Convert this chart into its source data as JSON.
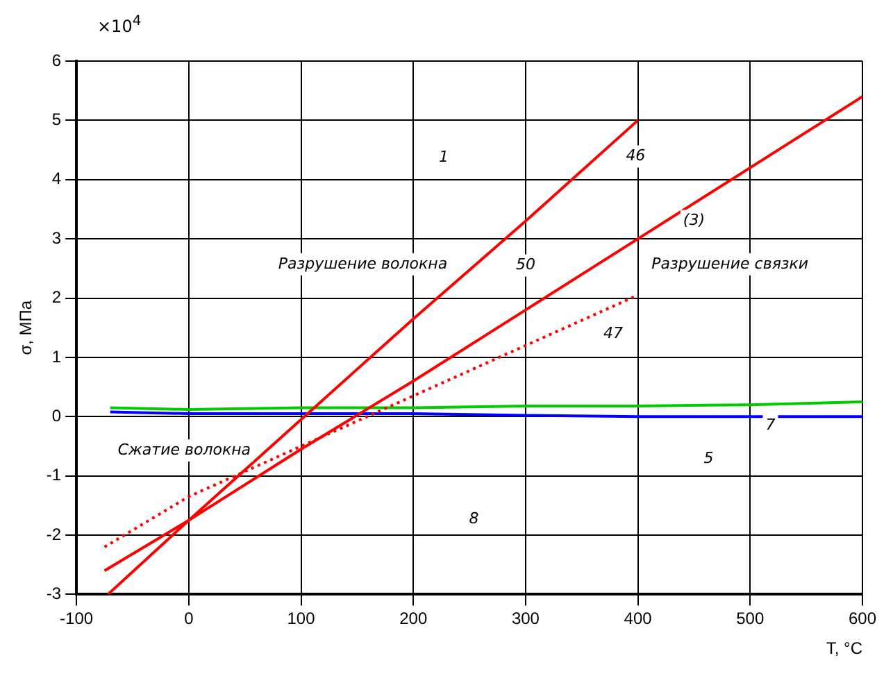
{
  "chart_data": {
    "type": "line",
    "xlabel": "T, °C",
    "ylabel": "σ, МПа",
    "xlim": [
      -100,
      600
    ],
    "ylim": [
      -3,
      6
    ],
    "xticks": [
      -100,
      0,
      100,
      200,
      300,
      400,
      500,
      600
    ],
    "yticks": [
      -3,
      -2,
      -1,
      0,
      1,
      2,
      3,
      4,
      5,
      6
    ],
    "grid": true,
    "marker": "none",
    "series": [
      {
        "color": "#ff0000",
        "x": [
          -72,
          0,
          100,
          200,
          300,
          400
        ],
        "values": [
          -3,
          -1.75,
          -0.05,
          1.65,
          3.3,
          5
        ]
      },
      {
        "color": "#ff0000",
        "x": [
          -75,
          0,
          100,
          200,
          300,
          400,
          500,
          600
        ],
        "values": [
          -2.6,
          -1.75,
          -0.55,
          0.6,
          1.8,
          3,
          4.2,
          5.4
        ]
      },
      {
        "color": "#ff0000",
        "line_style": "dotted",
        "x": [
          -75,
          0,
          100,
          200,
          300,
          400
        ],
        "values": [
          -2.2,
          -1.35,
          -0.5,
          0.35,
          1.2,
          2.05
        ]
      },
      {
        "color": "#00cc00",
        "x": [
          -70,
          0,
          100,
          200,
          300,
          400,
          500,
          600
        ],
        "values": [
          0.15,
          0.12,
          0.15,
          0.15,
          0.18,
          0.18,
          0.2,
          0.25
        ]
      },
      {
        "color": "#0000ff",
        "x": [
          -70,
          0,
          100,
          200,
          300,
          400,
          500,
          600
        ],
        "values": [
          0.08,
          0.05,
          0.05,
          0.05,
          0.02,
          0,
          0,
          0
        ]
      }
    ],
    "annotations": [
      "×10$^{4}$",
      "1",
      "46",
      "(3)",
      "Разрушение волокна",
      "Разрушение связки",
      "50",
      "47",
      "Сжатие волокна",
      "8",
      "5",
      "7"
    ]
  }
}
